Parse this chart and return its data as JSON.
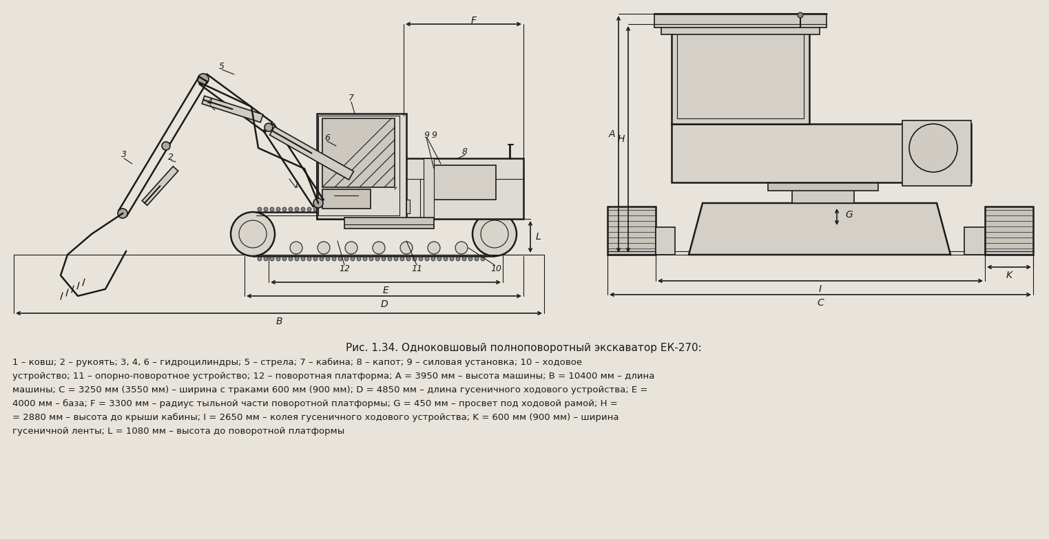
{
  "bg_color": "#e8e4dc",
  "line_color": "#1a1a1a",
  "title": "Рис. 1.34. Одноковшовый полноповоротный экскаватор ЕК-270:",
  "caption_lines": [
    "1 – ковш; 2 – рукоять; 3, 4, 6 – гидроцилиндры; 5 – стрела; 7 – кабина; 8 – капот; 9 – силовая установка; 10 – ходовое",
    "устройство; 11 – опорно-поворотное устройство; 12 – поворотная платформа; A = 3950 мм – высота машины; B = 10400 мм – длина",
    "машины; C = 3250 мм (3550 мм) – ширина с траками 600 мм (900 мм); D = 4850 мм – длина гусеничного ходового устройства; E =",
    "4000 мм – база; F = 3300 мм – радиус тыльной части поворотной платформы; G = 450 мм – просвет под ходовой рамой; H =",
    "= 2880 мм – высота до крыши кабины; I = 2650 мм – колея гусеничного ходового устройства; K = 600 мм (900 мм) – ширина",
    "гусеничной ленты; L = 1080 мм – высота до поворотной платформы"
  ],
  "font_size_title": 11,
  "font_size_caption": 9.5
}
